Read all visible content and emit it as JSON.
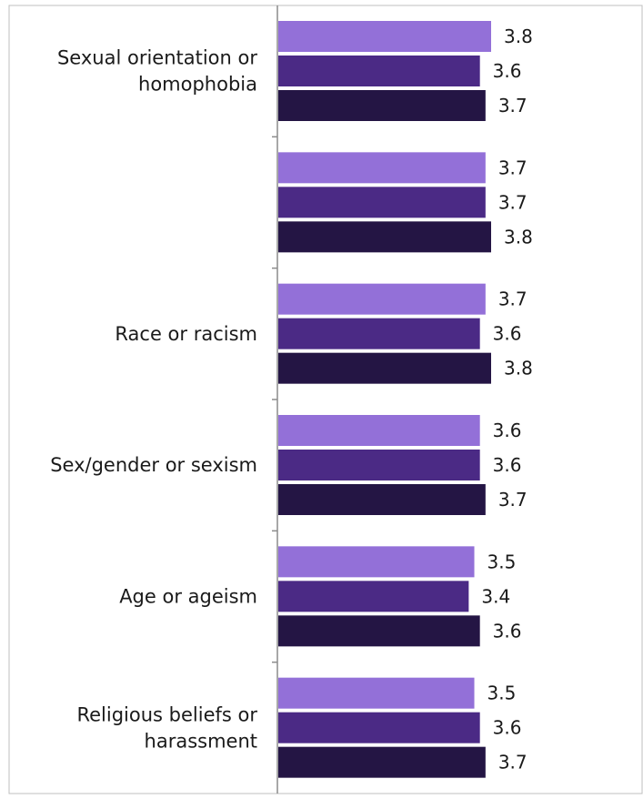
{
  "chart_data": {
    "type": "bar",
    "orientation": "horizontal",
    "categories": [
      [
        "Sexual orientation or",
        "homophobia"
      ],
      [],
      [
        "Race or racism"
      ],
      [
        "Sex/gender or sexism"
      ],
      [
        "Age or ageism"
      ],
      [
        "Religious beliefs or",
        "harassment"
      ]
    ],
    "series": [
      {
        "values": [
          3.8,
          3.7,
          3.7,
          3.6,
          3.5,
          3.5
        ],
        "color": "#9370d8"
      },
      {
        "values": [
          3.6,
          3.7,
          3.6,
          3.6,
          3.4,
          3.6
        ],
        "color": "#4b2a85"
      },
      {
        "values": [
          3.7,
          3.8,
          3.8,
          3.7,
          3.6,
          3.7
        ],
        "color": "#241544"
      }
    ],
    "value_labels": true,
    "legend": "none",
    "grid": false,
    "xlim": [
      0,
      5
    ]
  }
}
